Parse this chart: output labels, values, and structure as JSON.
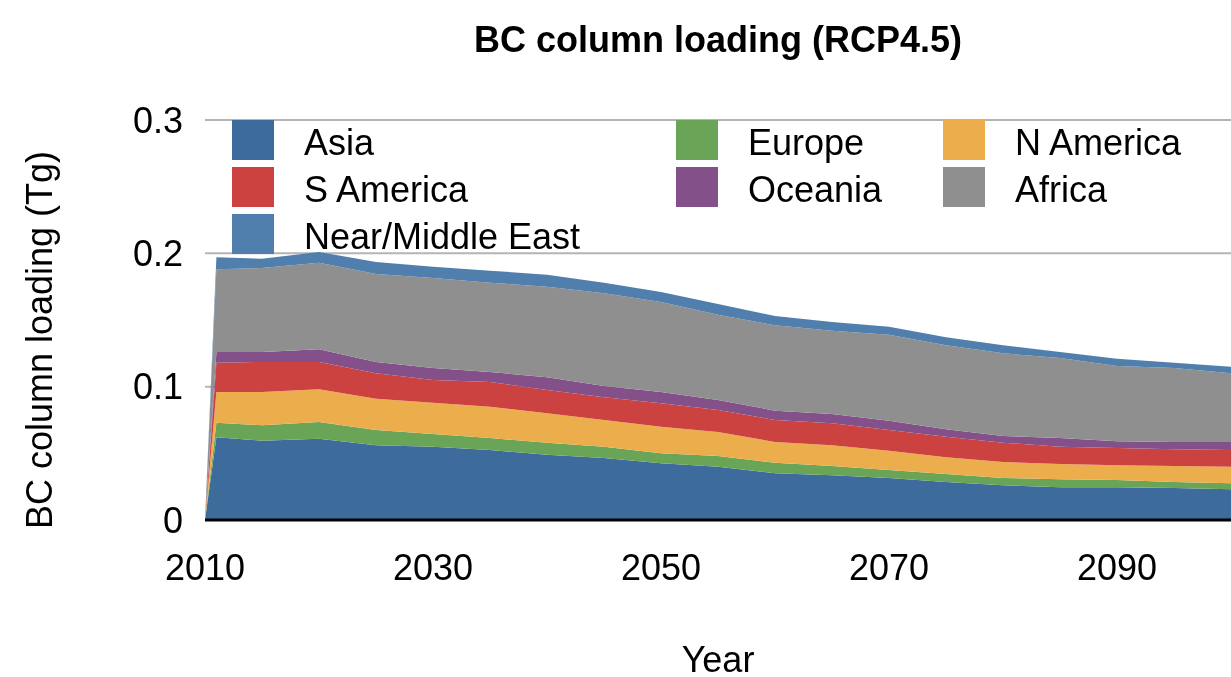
{
  "chart_data": {
    "type": "area",
    "stacked": true,
    "title": "BC column loading (RCP4.5)",
    "xlabel": "Year",
    "ylabel": "BC column loading (Tg)",
    "x": [
      2010,
      2011,
      2015,
      2020,
      2025,
      2030,
      2035,
      2040,
      2045,
      2050,
      2055,
      2060,
      2065,
      2070,
      2075,
      2080,
      2085,
      2090,
      2095,
      2100
    ],
    "series": [
      {
        "name": "Asia",
        "color": "#3d6b9c",
        "values": [
          0,
          0.062,
          0.0595,
          0.061,
          0.056,
          0.055,
          0.0525,
          0.049,
          0.0465,
          0.0425,
          0.04,
          0.035,
          0.0335,
          0.0315,
          0.0285,
          0.026,
          0.0245,
          0.0245,
          0.024,
          0.023
        ]
      },
      {
        "name": "Europe",
        "color": "#6aa456",
        "values": [
          0,
          0.011,
          0.0115,
          0.0125,
          0.0115,
          0.0095,
          0.009,
          0.009,
          0.0085,
          0.0075,
          0.008,
          0.008,
          0.007,
          0.006,
          0.006,
          0.0055,
          0.006,
          0.0055,
          0.0045,
          0.0045
        ]
      },
      {
        "name": "N America",
        "color": "#ecae4c",
        "values": [
          0,
          0.023,
          0.025,
          0.0245,
          0.0235,
          0.0235,
          0.0235,
          0.022,
          0.02,
          0.02,
          0.018,
          0.0155,
          0.0155,
          0.0145,
          0.0125,
          0.012,
          0.0115,
          0.011,
          0.012,
          0.0125
        ]
      },
      {
        "name": "S America",
        "color": "#cb4240",
        "values": [
          0,
          0.022,
          0.0225,
          0.0205,
          0.019,
          0.017,
          0.0185,
          0.0175,
          0.017,
          0.0175,
          0.0165,
          0.0165,
          0.0165,
          0.0155,
          0.0155,
          0.0145,
          0.013,
          0.013,
          0.0125,
          0.0125
        ]
      },
      {
        "name": "Oceania",
        "color": "#84508a",
        "values": [
          0,
          0.008,
          0.0075,
          0.0095,
          0.0085,
          0.009,
          0.0075,
          0.0095,
          0.0085,
          0.0085,
          0.0075,
          0.007,
          0.007,
          0.007,
          0.0055,
          0.005,
          0.0065,
          0.005,
          0.0055,
          0.006
        ]
      },
      {
        "name": "Africa",
        "color": "#8e8f8e",
        "values": [
          0,
          0.062,
          0.063,
          0.065,
          0.066,
          0.0675,
          0.067,
          0.068,
          0.0695,
          0.0675,
          0.064,
          0.064,
          0.0625,
          0.0645,
          0.063,
          0.062,
          0.06,
          0.0565,
          0.0555,
          0.0515
        ]
      },
      {
        "name": "Near/Middle East",
        "color": "#507fae",
        "values": [
          0,
          0.009,
          0.007,
          0.008,
          0.009,
          0.0085,
          0.009,
          0.009,
          0.008,
          0.0075,
          0.008,
          0.007,
          0.0065,
          0.006,
          0.006,
          0.006,
          0.0045,
          0.0055,
          0.004,
          0.005
        ]
      }
    ],
    "xlim": [
      2010,
      2100
    ],
    "xticks": [
      2010,
      2030,
      2050,
      2070,
      2090
    ],
    "ylim": [
      0,
      0.3
    ],
    "yticks": [
      {
        "value": 0,
        "label": "0"
      },
      0.1,
      0.2,
      0.3
    ],
    "grid": "y",
    "legend": "top"
  }
}
